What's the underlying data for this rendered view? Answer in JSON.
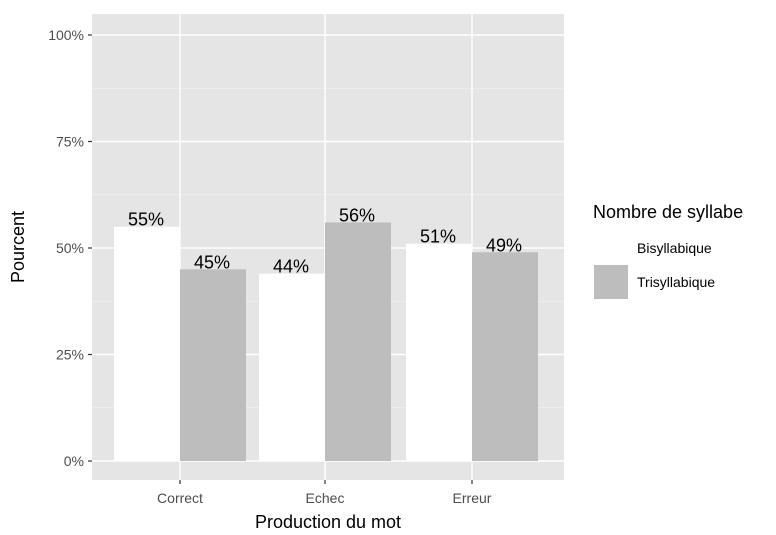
{
  "chart_data": {
    "type": "bar",
    "categories": [
      "Correct",
      "Echec",
      "Erreur"
    ],
    "series": [
      {
        "name": "Bisyllabique",
        "values": [
          55,
          44,
          51
        ],
        "labels": [
          "55%",
          "44%",
          "51%"
        ],
        "color": "#ffffff"
      },
      {
        "name": "Trisyllabique",
        "values": [
          45,
          56,
          49
        ],
        "labels": [
          "45%",
          "56%",
          "49%"
        ],
        "color": "#bdbdbd"
      }
    ],
    "xlabel": "Production du mot",
    "ylabel": "Pourcent",
    "ylim": [
      0,
      100
    ],
    "yticks": [
      0,
      25,
      50,
      75,
      100
    ],
    "ytick_labels": [
      "0%",
      "25%",
      "50%",
      "75%",
      "100%"
    ],
    "grid": true,
    "panel_background": "#e5e5e5",
    "legend": {
      "title": "Nombre de syllabe",
      "position": "right"
    }
  }
}
